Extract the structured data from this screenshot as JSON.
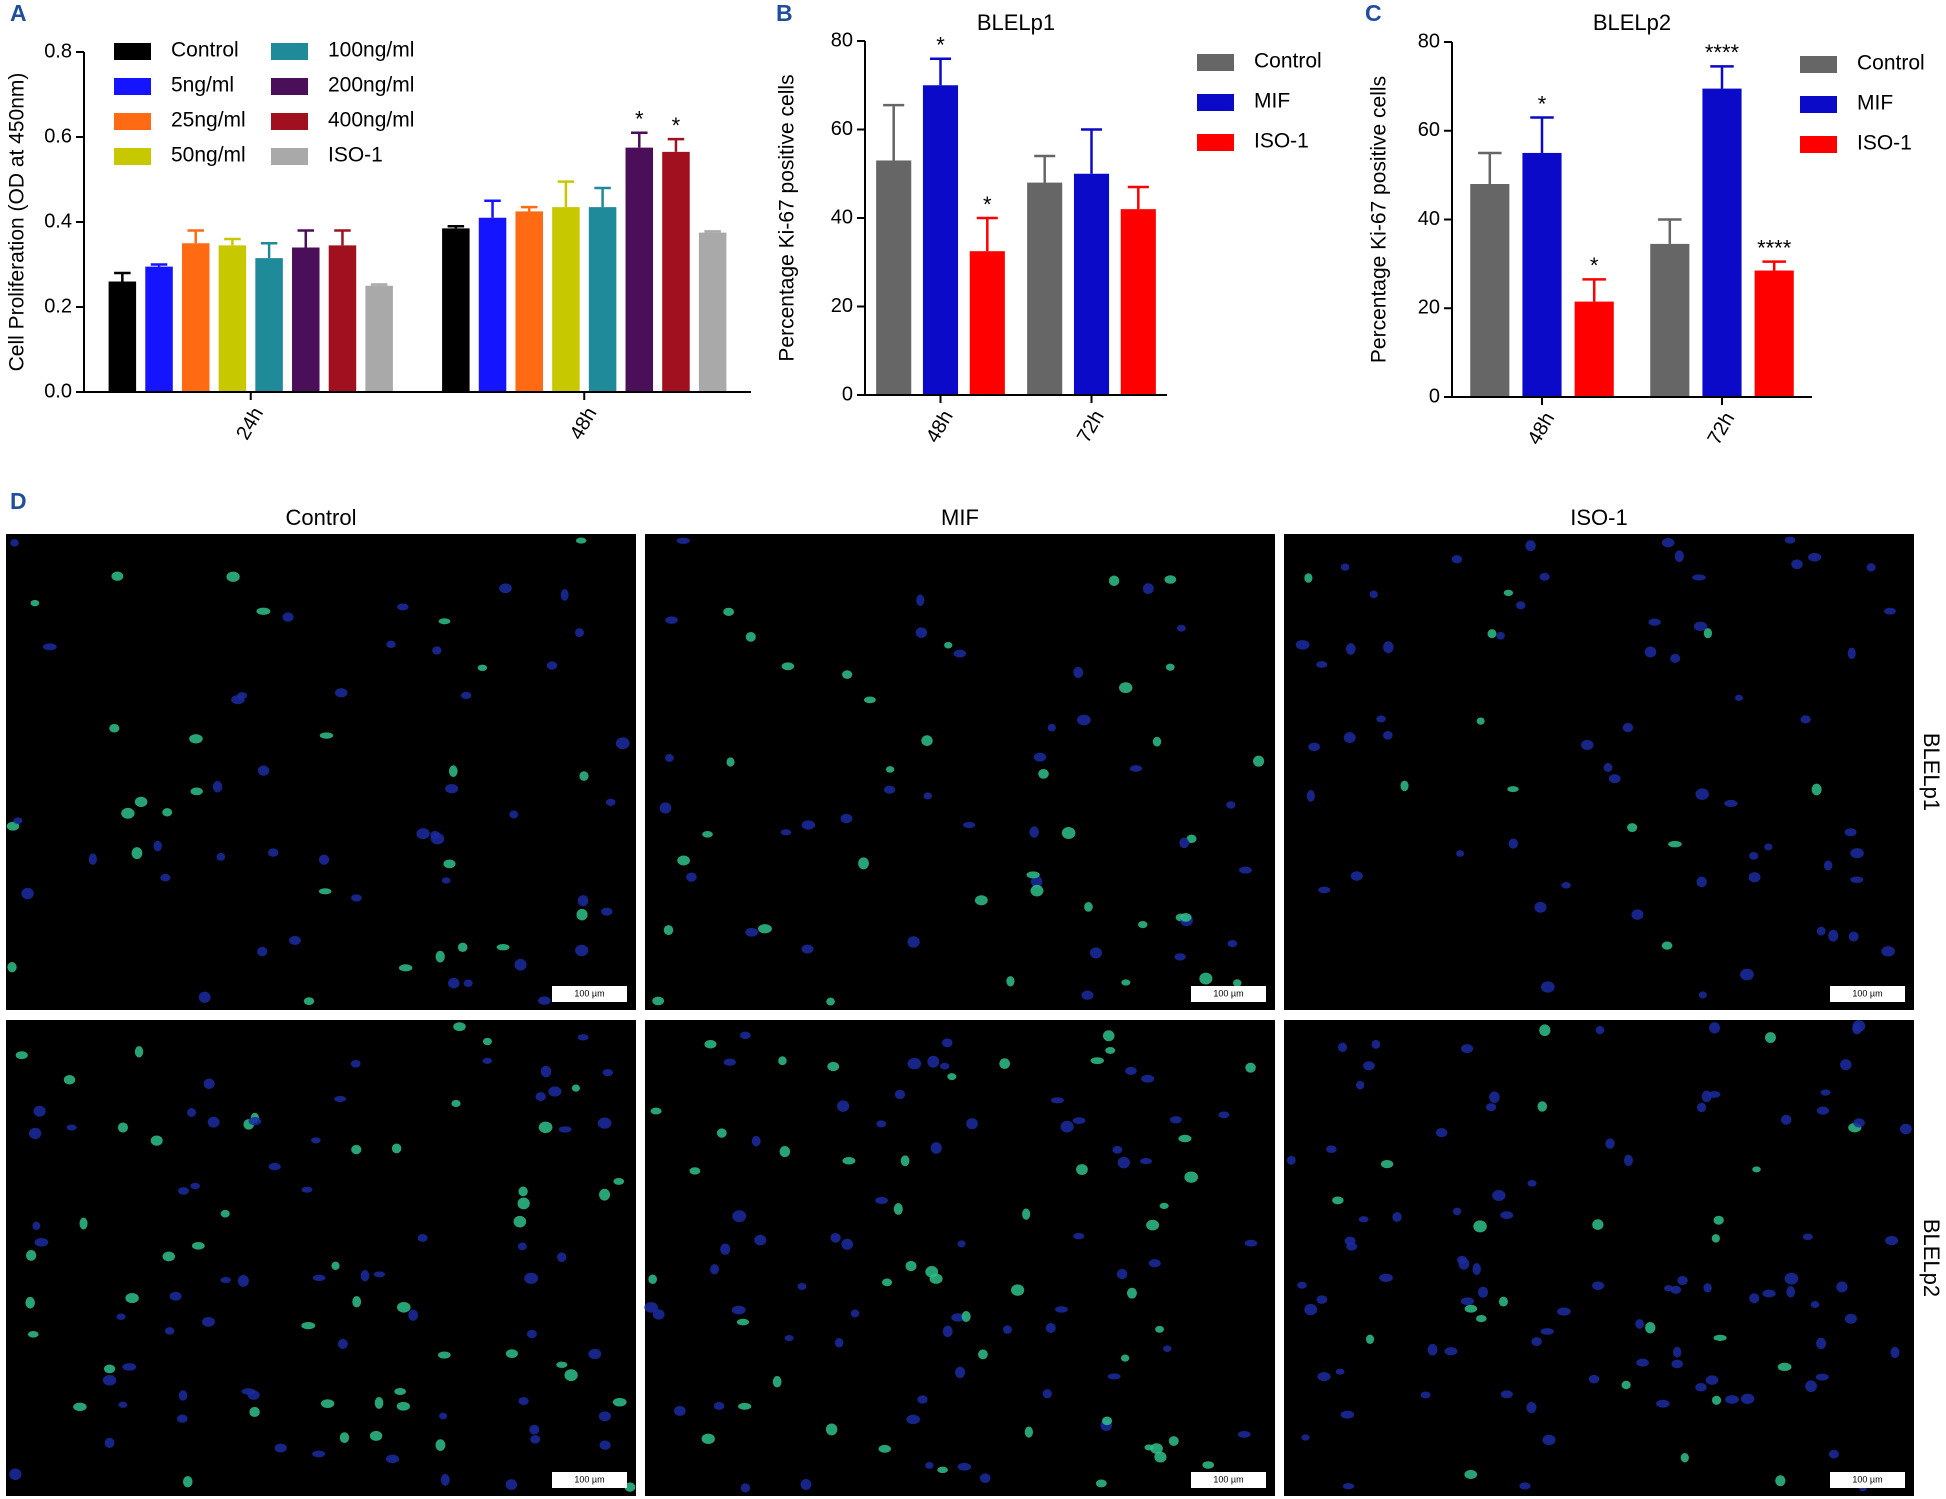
{
  "chart_data": [
    {
      "type": "bar",
      "panel": "A",
      "y_label": "Cell Proliferation (OD at 450nm)",
      "categories": [
        "24h",
        "48h"
      ],
      "ylim": [
        0,
        0.8
      ],
      "yticks": [
        {
          "value": 0,
          "label": "0.0"
        },
        0.2,
        0.4,
        0.6,
        0.8
      ],
      "series": [
        {
          "name": "Control",
          "color": "#000000",
          "values": [
            0.26,
            0.385
          ],
          "errors": [
            0.02,
            0.005
          ],
          "annotations": [
            null,
            null
          ]
        },
        {
          "name": "5ng/ml",
          "color": "#1414ff",
          "values": [
            0.295,
            0.41
          ],
          "errors": [
            0.005,
            0.04
          ],
          "annotations": [
            null,
            null
          ]
        },
        {
          "name": "25ng/ml",
          "color": "#ff6a13",
          "values": [
            0.35,
            0.425
          ],
          "errors": [
            0.03,
            0.01
          ],
          "annotations": [
            null,
            null
          ]
        },
        {
          "name": "50ng/ml",
          "color": "#c8c800",
          "values": [
            0.345,
            0.435
          ],
          "errors": [
            0.015,
            0.06
          ],
          "annotations": [
            null,
            null
          ]
        },
        {
          "name": "100ng/ml",
          "color": "#1e8a9a",
          "values": [
            0.315,
            0.435
          ],
          "errors": [
            0.035,
            0.045
          ],
          "annotations": [
            null,
            null
          ]
        },
        {
          "name": "200ng/ml",
          "color": "#4b0f5a",
          "values": [
            0.34,
            0.575
          ],
          "errors": [
            0.04,
            0.035
          ],
          "annotations": [
            null,
            "*"
          ]
        },
        {
          "name": "400ng/ml",
          "color": "#a0101e",
          "values": [
            0.345,
            0.565
          ],
          "errors": [
            0.035,
            0.03
          ],
          "annotations": [
            null,
            "*"
          ]
        },
        {
          "name": "ISO-1",
          "color": "#a9a9a9",
          "values": [
            0.25,
            0.375
          ],
          "errors": [
            0.003,
            0.003
          ],
          "annotations": [
            null,
            null
          ]
        }
      ]
    },
    {
      "type": "bar",
      "panel": "B",
      "title": "BLELp1",
      "y_label": "Percentage Ki-67 positive cells",
      "categories": [
        "48h",
        "72h"
      ],
      "ylim": [
        0,
        80
      ],
      "yticks": [
        0,
        20,
        40,
        60,
        80
      ],
      "series": [
        {
          "name": "Control",
          "color": "#666666",
          "values": [
            53,
            48
          ],
          "errors": [
            12.5,
            6
          ],
          "annotations": [
            null,
            null
          ]
        },
        {
          "name": "MIF",
          "color": "#0a0ac8",
          "values": [
            70,
            50
          ],
          "errors": [
            6,
            10
          ],
          "annotations": [
            "*",
            null
          ]
        },
        {
          "name": "ISO-1",
          "color": "#ff0000",
          "values": [
            32.5,
            42
          ],
          "errors": [
            7.5,
            5
          ],
          "annotations": [
            "*",
            null
          ]
        }
      ]
    },
    {
      "type": "bar",
      "panel": "C",
      "title": "BLELp2",
      "y_label": "Percentage Ki-67 positive cells",
      "categories": [
        "48h",
        "72h"
      ],
      "ylim": [
        0,
        80
      ],
      "yticks": [
        0,
        20,
        40,
        60,
        80
      ],
      "series": [
        {
          "name": "Control",
          "color": "#666666",
          "values": [
            48,
            34.5
          ],
          "errors": [
            7,
            5.5
          ],
          "annotations": [
            null,
            null
          ]
        },
        {
          "name": "MIF",
          "color": "#0a0ac8",
          "values": [
            55,
            69.5
          ],
          "errors": [
            8,
            5
          ],
          "annotations": [
            "*",
            "****"
          ]
        },
        {
          "name": "ISO-1",
          "color": "#ff0000",
          "values": [
            21.5,
            28.5
          ],
          "errors": [
            5,
            2
          ],
          "annotations": [
            "*",
            "****"
          ]
        }
      ]
    }
  ],
  "micrographs": {
    "panel": "D",
    "columns": [
      "Control",
      "MIF",
      "ISO-1"
    ],
    "rows": [
      "BLELp1",
      "BLELp2"
    ],
    "scale_bar": "100 µm"
  }
}
